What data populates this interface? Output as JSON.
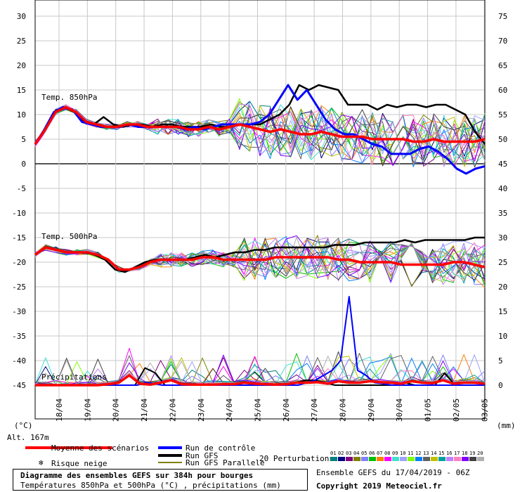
{
  "chart_data": {
    "type": "line",
    "left_axis": {
      "ticks": [
        30,
        25,
        20,
        15,
        10,
        5,
        0,
        -5,
        -10,
        -15,
        -20,
        -25,
        -30,
        -35,
        -40,
        -45
      ],
      "unit_label": "(°C)"
    },
    "right_axis": {
      "ticks": [
        75,
        70,
        65,
        60,
        55,
        50,
        45,
        40,
        35,
        30,
        25,
        20,
        15,
        10,
        5,
        0
      ],
      "unit_label": "(mm)"
    },
    "x_dates": [
      "18/04",
      "19/04",
      "20/04",
      "21/04",
      "22/04",
      "23/04",
      "24/04",
      "25/04",
      "26/04",
      "27/04",
      "28/04",
      "29/04",
      "30/04",
      "01/05",
      "02/05",
      "03/05"
    ],
    "altitude_label": "Alt. 167m",
    "panel_labels": {
      "t850": "Temp. 850hPa",
      "t500": "Temp. 500hPa",
      "precip": "Précipitations"
    },
    "grid": true,
    "t850": {
      "mean": [
        4,
        7,
        10.5,
        11.5,
        10.5,
        8.5,
        8,
        7.5,
        7.5,
        8,
        8,
        7.5,
        7.5,
        7.5,
        7.5,
        7,
        7,
        7.5,
        7,
        7.5,
        8,
        7.5,
        7,
        6.5,
        7,
        6.5,
        6,
        6,
        6.5,
        6,
        5.5,
        5.5,
        5.5,
        5,
        5,
        5,
        5,
        4.5,
        4.5,
        5,
        4.5,
        4.5,
        4.5,
        4.5,
        5
      ],
      "control": [
        4,
        7,
        10.5,
        11.5,
        11,
        8.5,
        8,
        7.5,
        7.5,
        7.5,
        8,
        7.5,
        7.5,
        7.5,
        7.5,
        7.5,
        7,
        7.5,
        7,
        7.5,
        8,
        8,
        8,
        8,
        8.5,
        10,
        13,
        16,
        13,
        15,
        12,
        9,
        7,
        6,
        6,
        5,
        4,
        3.5,
        2,
        2,
        2,
        3,
        3.5,
        2.5,
        1,
        -1,
        -2,
        -1,
        -0.5
      ],
      "gfs": [
        4,
        7,
        10.5,
        11.5,
        10.5,
        8.5,
        8,
        9.5,
        8,
        7.5,
        8,
        8,
        7.5,
        8,
        8,
        7.5,
        7.5,
        7.5,
        8,
        7.5,
        7.5,
        8,
        8,
        8,
        9,
        10,
        12,
        16,
        15,
        16,
        15.5,
        15,
        12,
        12,
        12,
        11,
        12,
        11.5,
        12,
        12,
        11.5,
        12,
        12,
        11,
        10,
        6.5,
        4
      ]
    },
    "t500": {
      "mean": [
        -18.5,
        -17,
        -17.5,
        -18,
        -18,
        -18,
        -18.5,
        -19.5,
        -21.5,
        -21.5,
        -21,
        -20,
        -19.5,
        -19.5,
        -19.5,
        -19.5,
        -19,
        -19,
        -19.5,
        -19.5,
        -19.5,
        -19.5,
        -19.5,
        -19,
        -19,
        -19,
        -19,
        -19,
        -19,
        -19.5,
        -19.5,
        -20,
        -20,
        -20,
        -20,
        -20.5,
        -20.5,
        -20.5,
        -20.5,
        -20.5,
        -20,
        -20,
        -20.5,
        -21
      ],
      "gfs": [
        -18.5,
        -17,
        -17.5,
        -18,
        -18,
        -18,
        -18.5,
        -19.5,
        -21.5,
        -22,
        -21,
        -20,
        -19.5,
        -19.5,
        -19.5,
        -19.5,
        -19,
        -18.5,
        -19,
        -18.5,
        -18,
        -18,
        -17.5,
        -17.5,
        -17,
        -17,
        -17,
        -17,
        -17,
        -17,
        -16.5,
        -16.5,
        -16.5,
        -16,
        -16,
        -16,
        -16,
        -15.5,
        -16,
        -15.5,
        -15.5,
        -15.5,
        -15.5,
        -15.5,
        -15,
        -15
      ]
    },
    "precip": {
      "mean": [
        0,
        0,
        0,
        0,
        0,
        0,
        0,
        0.2,
        0.5,
        2,
        0.3,
        0.1,
        0.5,
        1,
        0.2,
        0.1,
        0.1,
        0.1,
        0.2,
        0.2,
        0.5,
        0.3,
        0.2,
        0.1,
        0.2,
        0.5,
        0.5,
        0.6,
        0.3,
        0.8,
        0.5,
        0.5,
        0.8,
        0.6,
        0.5,
        0.3,
        0.8,
        0.5,
        0.4,
        1,
        0.3,
        0.5,
        0.5,
        0.3
      ],
      "control": [
        0,
        0,
        0,
        0,
        0,
        0,
        0,
        0,
        0,
        0,
        0,
        0,
        0,
        0.5,
        0.3,
        0,
        0,
        0,
        0,
        0,
        0,
        0,
        0,
        0,
        0,
        0,
        0,
        0,
        0,
        0,
        0,
        0,
        0.5,
        1,
        2,
        3,
        5,
        18,
        3,
        2,
        0.5,
        0.3,
        0,
        0,
        0,
        0,
        0,
        0,
        0,
        0,
        0,
        0,
        0,
        0
      ],
      "gfs": [
        0,
        0,
        0,
        0,
        0,
        0,
        0,
        0,
        0,
        0,
        0,
        3.5,
        2.5,
        0,
        0,
        0,
        0,
        0,
        0,
        0,
        0,
        0,
        0,
        0,
        0,
        0,
        0.5,
        1,
        1,
        0.5,
        0,
        0,
        0,
        0,
        0,
        0,
        0,
        0.5,
        0,
        0,
        0,
        2.5,
        0,
        0,
        0,
        0
      ]
    },
    "ensemble_colors": [
      "#008080",
      "#000080",
      "#800080",
      "#808000",
      "#8080ff",
      "#00c000",
      "#ff8000",
      "#ff00ff",
      "#40e0d0",
      "#a0a0ff",
      "#80ff00",
      "#0080ff",
      "#606060",
      "#c0c000",
      "#00a0a0",
      "#c080ff",
      "#ff80c0",
      "#8000ff",
      "#404040",
      "#b0b0b0"
    ],
    "colors": {
      "mean": "#ff0000",
      "control": "#0000ff",
      "gfs": "#000000",
      "gfs_parallel": "#808000"
    }
  },
  "legend": {
    "mean": "Moyenne des scénarios",
    "control": "Run de contrôle",
    "gfs": "Run GFS",
    "gfs_parallel": "Run GFS Parallele",
    "snow": "Risque neige",
    "perturbations": "20 Perturbations",
    "perturbation_numbers": [
      "01",
      "02",
      "03",
      "04",
      "05",
      "06",
      "07",
      "08",
      "09",
      "10",
      "11",
      "12",
      "13",
      "14",
      "15",
      "16",
      "17",
      "18",
      "19",
      "20"
    ]
  },
  "footer": {
    "title": "Diagramme des ensembles GEFS sur 384h pour bourges",
    "subtitle": "Températures 850hPa et 500hPa (°C) , précipitations (mm)",
    "run_info": "Ensemble GEFS du 17/04/2019 - 06Z",
    "copyright": "Copyright 2019 Meteociel.fr"
  }
}
